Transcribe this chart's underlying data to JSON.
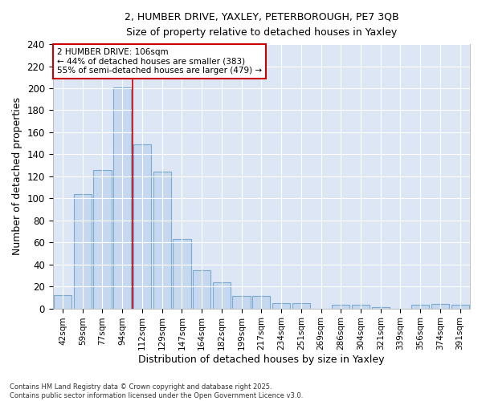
{
  "title_line1": "2, HUMBER DRIVE, YAXLEY, PETERBOROUGH, PE7 3QB",
  "title_line2": "Size of property relative to detached houses in Yaxley",
  "xlabel": "Distribution of detached houses by size in Yaxley",
  "ylabel": "Number of detached properties",
  "footnote": "Contains HM Land Registry data © Crown copyright and database right 2025.\nContains public sector information licensed under the Open Government Licence v3.0.",
  "bar_labels": [
    "42sqm",
    "59sqm",
    "77sqm",
    "94sqm",
    "112sqm",
    "129sqm",
    "147sqm",
    "164sqm",
    "182sqm",
    "199sqm",
    "217sqm",
    "234sqm",
    "251sqm",
    "269sqm",
    "286sqm",
    "304sqm",
    "321sqm",
    "339sqm",
    "356sqm",
    "374sqm",
    "391sqm"
  ],
  "bar_values": [
    12,
    104,
    126,
    201,
    149,
    124,
    63,
    35,
    24,
    11,
    11,
    5,
    5,
    0,
    3,
    3,
    1,
    0,
    3,
    4,
    3
  ],
  "bar_color": "#c5d8f0",
  "bar_edge_color": "#7aaad0",
  "plot_bg_color": "#dce6f5",
  "fig_bg_color": "#ffffff",
  "grid_color": "#ffffff",
  "red_line_x": 4.0,
  "annotation_text": "2 HUMBER DRIVE: 106sqm\n← 44% of detached houses are smaller (383)\n55% of semi-detached houses are larger (479) →",
  "annotation_box_color": "#ffffff",
  "annotation_box_edge": "#cc0000",
  "ylim": [
    0,
    240
  ],
  "yticks": [
    0,
    20,
    40,
    60,
    80,
    100,
    120,
    140,
    160,
    180,
    200,
    220,
    240
  ]
}
